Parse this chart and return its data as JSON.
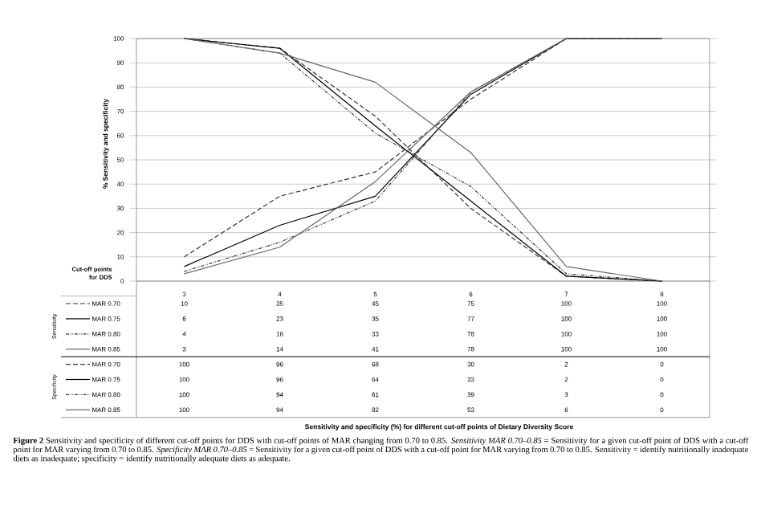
{
  "chart_data": {
    "type": "line",
    "ylabel": "% Sensitivity and specificity",
    "legend": "bottom left",
    "categories": [
      "3",
      "4",
      "5",
      "6",
      "7",
      "8"
    ],
    "ylim": [
      0,
      100
    ],
    "yticks": [
      0,
      10,
      20,
      30,
      40,
      50,
      60,
      70,
      80,
      90,
      100
    ],
    "grid": "y",
    "data_labels": true,
    "series": [
      {
        "name": "MAR 0.70",
        "color": "#333333",
        "line_style": "dashed",
        "values": [
          10,
          35,
          45,
          75,
          100,
          100
        ]
      },
      {
        "name": "MAR 0.75",
        "color": "#000000",
        "line_style": "solid",
        "values": [
          6,
          23,
          35,
          77,
          100,
          100
        ]
      },
      {
        "name": "MAR 0.80",
        "color": "#333333",
        "line_style": "dotted",
        "values": [
          4,
          16,
          33,
          78,
          100,
          100
        ]
      },
      {
        "name": "MAR 0.85",
        "color": "#666666",
        "line_style": "solid",
        "values": [
          3,
          14,
          41,
          78,
          100,
          100
        ]
      },
      {
        "name": "MAR 0.70",
        "color": "#333333",
        "line_style": "dashed",
        "values": [
          100,
          96,
          68,
          30,
          2,
          0
        ]
      },
      {
        "name": "MAR 0.75",
        "color": "#000000",
        "line_style": "solid",
        "values": [
          100,
          96,
          64,
          33,
          2,
          0
        ]
      },
      {
        "name": "MAR 0.80",
        "color": "#333333",
        "line_style": "dotted",
        "values": [
          100,
          94,
          61,
          39,
          3,
          0
        ]
      },
      {
        "name": "MAR 0.85",
        "color": "#666666",
        "line_style": "solid",
        "values": [
          100,
          94,
          82,
          53,
          6,
          0
        ]
      }
    ],
    "annotations": [
      "Cut-off points for DDS",
      "Sensitivity",
      "Specificity",
      "Sensitivity and specificity (%) for different cut-off points of Dietary Diversity Score",
      "**Figure 2**  Sensitivity and specificity of different cut-off points for DDS with cut-off points of MAR changing from 0.70 to 0.85. *Sensitivity MAR 0.70–0.85* = Sensitivity for a given cut-off point of DDS with a cut-off point for MAR varying from 0.70 to 0.85. *Specificity MAR 0.70–0.85* = Sensitivity for a given cut-off point of DDS with a cut-off point for MAR varying from 0.70 to 0.85.  Sensitivity = identify nutritionally inadequate diets as inadequate; specificity = identify nutritionally adequate diets as adequate."
    ]
  }
}
